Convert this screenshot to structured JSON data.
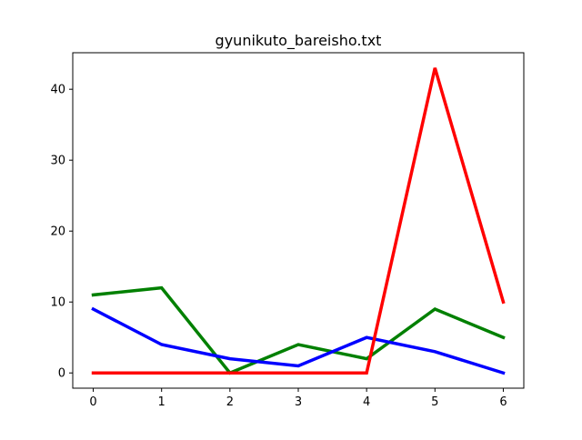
{
  "chart_data": {
    "type": "line",
    "title": "gyunikuto_bareisho.txt",
    "xlabel": "",
    "ylabel": "",
    "x": [
      0,
      1,
      2,
      3,
      4,
      5,
      6
    ],
    "xlim": [
      -0.3,
      6.3
    ],
    "ylim": [
      -2.15,
      45.15
    ],
    "x_ticks": [
      0,
      1,
      2,
      3,
      4,
      5,
      6
    ],
    "y_ticks": [
      0,
      10,
      20,
      30,
      40
    ],
    "grid": false,
    "legend": "none",
    "series": [
      {
        "color": "#008000",
        "values": [
          11,
          12,
          0,
          4,
          2,
          9,
          5
        ]
      },
      {
        "color": "#0000ff",
        "values": [
          9,
          4,
          2,
          1,
          5,
          3,
          0
        ]
      },
      {
        "color": "#ff0000",
        "values": [
          0,
          0,
          0,
          0,
          0,
          43,
          10
        ]
      }
    ]
  }
}
